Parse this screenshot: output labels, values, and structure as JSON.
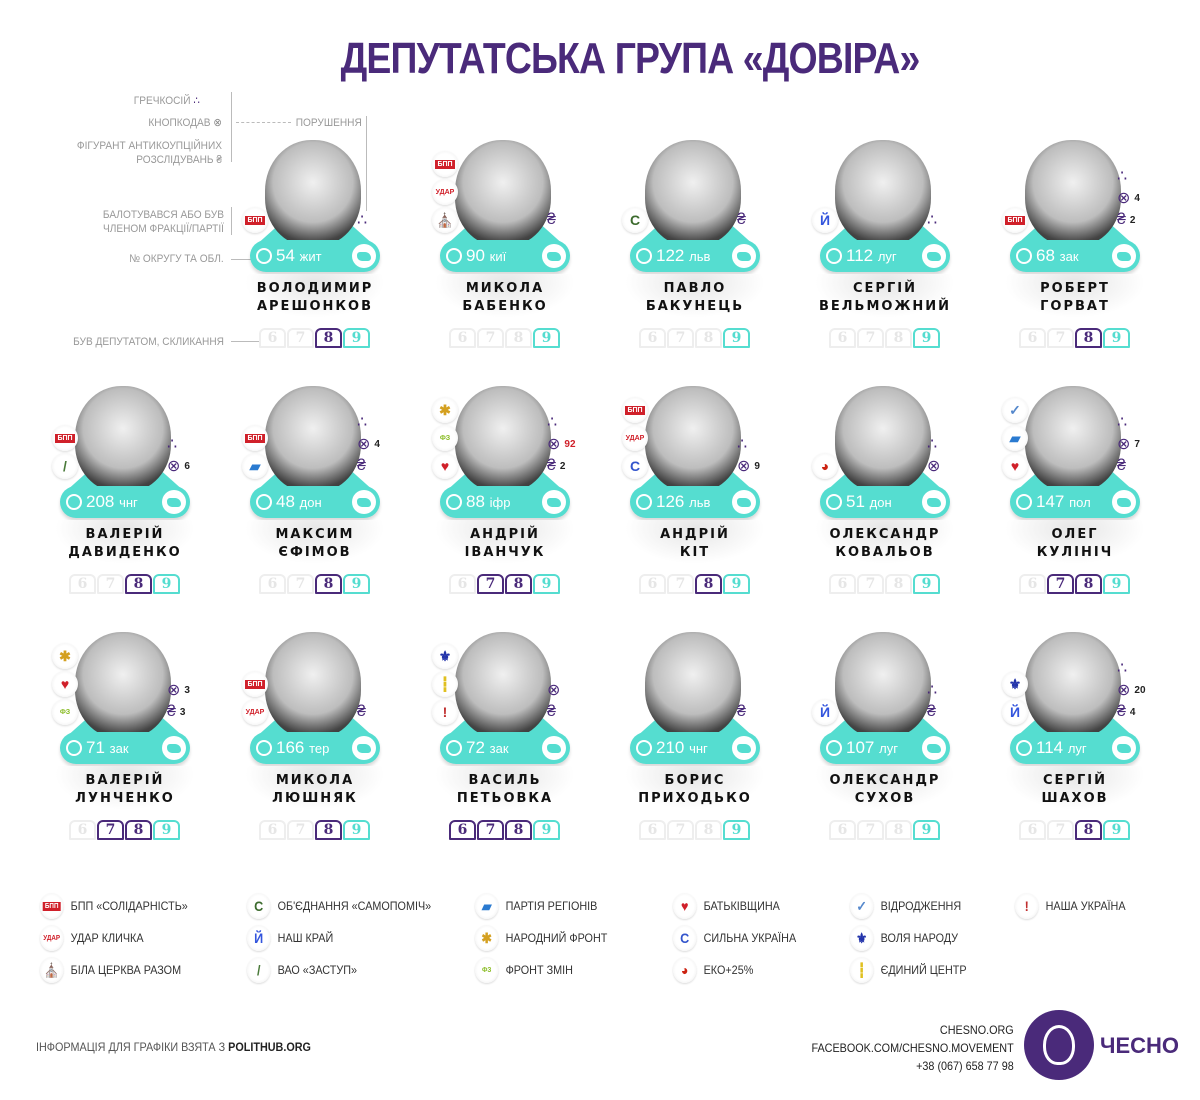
{
  "title": "ДЕПУТАТСЬКА ГРУПА «ДОВІРА»",
  "legend_left": {
    "grechka": "ГРЕЧКОСІЙ",
    "knopko": "КНОПКОДАВ",
    "antic": "ФІГУРАНТ АНТИКОУПЦІЙНИХ РОЗСЛІДУВАНЬ",
    "violations": "ПОРУШЕННЯ",
    "party": "БАЛОТУВАВСЯ АБО БУВ ЧЛЕНОМ ФРАКЦІЇ/ПАРТІЇ",
    "district": "№ ОКРУГУ ТА ОБЛ.",
    "convocations": "БУВ ДЕПУТАТОМ, СКЛИКАННЯ"
  },
  "accent": "#4a2a7a",
  "teal": "#55ddd0",
  "convocation_labels": [
    "6",
    "7",
    "8",
    "9"
  ],
  "deputies": [
    {
      "first": "ВОЛОДИМИР",
      "last": "АРЕШОНКОВ",
      "district": "54",
      "region": "жит",
      "parties": [
        "bpp"
      ],
      "grechka": true,
      "conv": [
        8
      ]
    },
    {
      "first": "МИКОЛА",
      "last": "БАБЕНКО",
      "district": "90",
      "region": "киї",
      "parties": [
        "bpp",
        "udar",
        "bila"
      ],
      "antic": "",
      "conv": []
    },
    {
      "first": "ПАВЛО",
      "last": "БАКУНЕЦЬ",
      "district": "122",
      "region": "льв",
      "parties": [
        "samopomich"
      ],
      "antic": "",
      "conv": []
    },
    {
      "first": "СЕРГІЙ",
      "last": "ВЕЛЬМОЖНИЙ",
      "district": "112",
      "region": "луг",
      "parties": [
        "nashkrai"
      ],
      "grechka": true,
      "conv": []
    },
    {
      "first": "РОБЕРТ",
      "last": "ГОРВАТ",
      "district": "68",
      "region": "зак",
      "parties": [
        "bpp"
      ],
      "grechka": true,
      "knopko": "4",
      "antic": "2",
      "conv": [
        8
      ]
    },
    {
      "first": "ВАЛЕРІЙ",
      "last": "ДАВИДЕНКО",
      "district": "208",
      "region": "чнг",
      "parties": [
        "bpp",
        "zastup"
      ],
      "grechka": true,
      "knopko": "6",
      "conv": [
        8
      ]
    },
    {
      "first": "МАКСИМ",
      "last": "ЄФІМОВ",
      "district": "48",
      "region": "дон",
      "parties": [
        "bpp",
        "regions"
      ],
      "grechka": true,
      "knopko": "4",
      "antic": "",
      "conv": [
        8
      ]
    },
    {
      "first": "АНДРІЙ",
      "last": "ІВАНЧУК",
      "district": "88",
      "region": "іфр",
      "parties": [
        "narfront",
        "frontzmin",
        "batk"
      ],
      "grechka": true,
      "knopko": "92",
      "knopko_red": true,
      "antic": "2",
      "conv": [
        7,
        8
      ]
    },
    {
      "first": "АНДРІЙ",
      "last": "КІТ",
      "district": "126",
      "region": "льв",
      "parties": [
        "bpp",
        "udar",
        "sylna"
      ],
      "grechka": true,
      "knopko": "9",
      "conv": [
        8
      ]
    },
    {
      "first": "ОЛЕКСАНДР",
      "last": "КОВАЛЬОВ",
      "district": "51",
      "region": "дон",
      "parties": [
        "eko"
      ],
      "grechka": true,
      "knopko": "",
      "conv": []
    },
    {
      "first": "ОЛЕГ",
      "last": "КУЛІНІЧ",
      "district": "147",
      "region": "пол",
      "parties": [
        "vidr",
        "regions",
        "batk"
      ],
      "grechka": true,
      "knopko": "7",
      "antic": "",
      "conv": [
        7,
        8
      ]
    },
    {
      "first": "ВАЛЕРІЙ",
      "last": "ЛУНЧЕНКО",
      "district": "71",
      "region": "зак",
      "parties": [
        "narfront",
        "batk",
        "frontzmin"
      ],
      "knopko": "3",
      "antic": "3",
      "conv": [
        7,
        8
      ]
    },
    {
      "first": "МИКОЛА",
      "last": "ЛЮШНЯК",
      "district": "166",
      "region": "тер",
      "parties": [
        "bpp",
        "udar"
      ],
      "antic": "",
      "conv": [
        8
      ]
    },
    {
      "first": "ВАСИЛЬ",
      "last": "ПЕТЬОВКА",
      "district": "72",
      "region": "зак",
      "parties": [
        "volia",
        "yed",
        "nashaukr"
      ],
      "knopko": "",
      "antic": "",
      "conv": [
        6,
        7,
        8
      ]
    },
    {
      "first": "БОРИС",
      "last": "ПРИХОДЬКО",
      "district": "210",
      "region": "чнг",
      "parties": [],
      "antic": "",
      "conv": []
    },
    {
      "first": "ОЛЕКСАНДР",
      "last": "СУХОВ",
      "district": "107",
      "region": "луг",
      "parties": [
        "nashkrai"
      ],
      "grechka": true,
      "antic": "",
      "conv": []
    },
    {
      "first": "СЕРГІЙ",
      "last": "ШАХОВ",
      "district": "114",
      "region": "луг",
      "parties": [
        "volia",
        "nashkrai"
      ],
      "grechka": true,
      "knopko": "20",
      "antic": "4",
      "conv": [
        8
      ]
    }
  ],
  "parties": {
    "bpp": {
      "label": "БПП «СОЛІДАРНІСТЬ»",
      "glyph": "БПП",
      "color": "#d0202a"
    },
    "samopomich": {
      "label": "ОБ'ЄДНАННЯ «САМОПОМІЧ»",
      "glyph": "С",
      "color": "#3d6b2e"
    },
    "regions": {
      "label": "ПАРТІЯ РЕГІОНІВ",
      "glyph": "▰",
      "color": "#2a7ad0"
    },
    "batk": {
      "label": "БАТЬКІВЩИНА",
      "glyph": "♥",
      "color": "#d0202a"
    },
    "vidr": {
      "label": "ВІДРОДЖЕННЯ",
      "glyph": "✓",
      "color": "#5588cc"
    },
    "nashaukr": {
      "label": "НАША УКРАЇНА",
      "glyph": "!",
      "color": "#c03030"
    },
    "udar": {
      "label": "УДАР КЛИЧКА",
      "glyph": "УДАР",
      "color": "#d0202a"
    },
    "nashkrai": {
      "label": "НАШ КРАЙ",
      "glyph": "Й",
      "color": "#3355dd"
    },
    "narfront": {
      "label": "НАРОДНИЙ ФРОНТ",
      "glyph": "✱",
      "color": "#d4a020"
    },
    "sylna": {
      "label": "СИЛЬНА УКРАЇНА",
      "glyph": "C",
      "color": "#3355cc"
    },
    "volia": {
      "label": "ВОЛЯ НАРОДУ",
      "glyph": "⚜",
      "color": "#2233aa"
    },
    "bila": {
      "label": "БІЛА ЦЕРКВА РАЗОМ",
      "glyph": "⛪",
      "color": "#d0202a"
    },
    "zastup": {
      "label": "ВАО «ЗАСТУП»",
      "glyph": "/",
      "color": "#4a7a3a"
    },
    "frontzmin": {
      "label": "ФРОНТ ЗМІН",
      "glyph": "ФЗ",
      "color": "#88bb22"
    },
    "eko": {
      "label": "ЕКО+25%",
      "glyph": "◕",
      "color": "#cc2211"
    },
    "yed": {
      "label": "ЄДИНИЙ ЦЕНТР",
      "glyph": "┇",
      "color": "#e0c020"
    }
  },
  "party_legend_order": [
    [
      "bpp",
      "udar",
      "bila"
    ],
    [
      "samopomich",
      "nashkrai",
      "zastup"
    ],
    [
      "regions",
      "narfront",
      "frontzmin"
    ],
    [
      "batk",
      "sylna",
      "eko"
    ],
    [
      "vidr",
      "volia",
      "yed"
    ],
    [
      "nashaukr"
    ]
  ],
  "footer": {
    "source_prefix": "ІНФОРМАЦІЯ ДЛЯ ГРАФІКИ ВЗЯТА З ",
    "source": "POLITHUB.ORG",
    "site": "CHESNO.ORG",
    "facebook": "FACEBOOK.COM/CHESNO.MOVEMENT",
    "phone": "+38 (067) 658 77 98",
    "logo": "ЧЕСНО"
  }
}
